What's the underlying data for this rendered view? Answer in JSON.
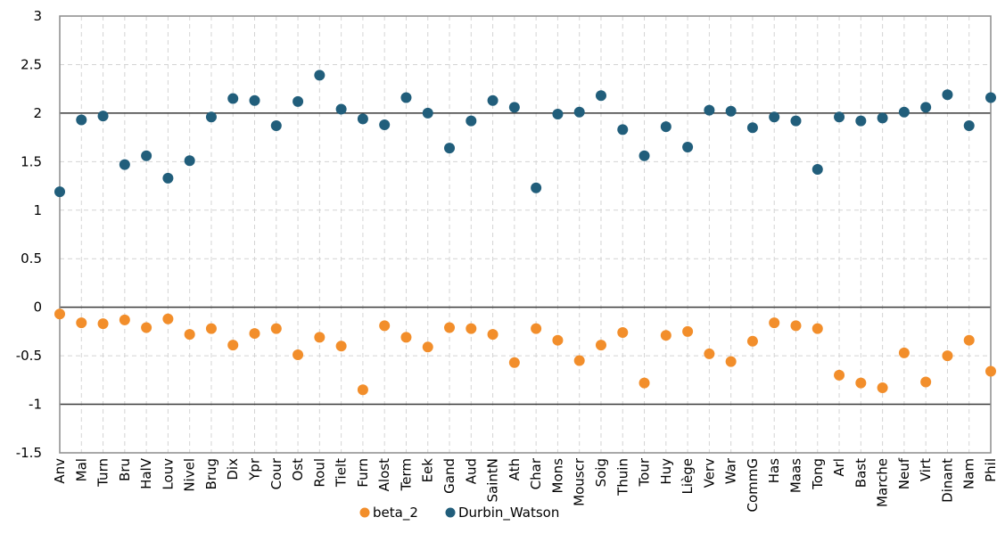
{
  "chart_data": {
    "type": "scatter",
    "ylim": [
      -1.5,
      3
    ],
    "yticks": [
      -1.5,
      -1,
      -0.5,
      0,
      0.5,
      1,
      1.5,
      2,
      2.5,
      3
    ],
    "ytick_labels": [
      "-1.5",
      "-1",
      "-0.5",
      "0",
      "0.5",
      "1",
      "1.5",
      "2",
      "2.5",
      "3"
    ],
    "reference_lines": [
      -1,
      0,
      2
    ],
    "grid": true,
    "legend_position": "bottom",
    "categories": [
      "Anv",
      "Mal",
      "Turn",
      "Bru",
      "HalV",
      "Louv",
      "Nivel",
      "Brug",
      "Dix",
      "Ypr",
      "Cour",
      "Ost",
      "Roul",
      "Tielt",
      "Furn",
      "Alost",
      "Term",
      "Eek",
      "Gand",
      "Aud",
      "SaintN",
      "Ath",
      "Char",
      "Mons",
      "Mouscr",
      "Soig",
      "Thuin",
      "Tour",
      "Huy",
      "Liège",
      "Verv",
      "War",
      "CommG",
      "Has",
      "Maas",
      "Tong",
      "Arl",
      "Bast",
      "Marche",
      "Neuf",
      "Virt",
      "Dinant",
      "Nam",
      "Phil"
    ],
    "series": [
      {
        "name": "beta_2",
        "color": "#F28E2B",
        "values": [
          -0.07,
          -0.16,
          -0.17,
          -0.13,
          -0.21,
          -0.12,
          -0.28,
          -0.22,
          -0.39,
          -0.27,
          -0.22,
          -0.49,
          -0.31,
          -0.4,
          -0.85,
          -0.19,
          -0.31,
          -0.41,
          -0.21,
          -0.22,
          -0.28,
          -0.57,
          -0.22,
          -0.34,
          -0.55,
          -0.39,
          -0.26,
          -0.78,
          -0.29,
          -0.25,
          -0.48,
          -0.56,
          -0.35,
          -0.16,
          -0.19,
          -0.22,
          -0.7,
          -0.78,
          -0.83,
          -0.47,
          -0.77,
          -0.5,
          -0.34,
          -0.66
        ]
      },
      {
        "name": "Durbin_Watson",
        "color": "#215E7B",
        "values": [
          1.19,
          1.93,
          1.97,
          1.47,
          1.56,
          1.33,
          1.51,
          1.96,
          2.15,
          2.13,
          1.87,
          2.12,
          2.39,
          2.04,
          1.94,
          1.88,
          2.16,
          2.0,
          1.64,
          1.92,
          2.13,
          2.06,
          1.23,
          1.99,
          2.01,
          2.18,
          1.83,
          1.56,
          1.86,
          1.65,
          2.03,
          2.02,
          1.85,
          1.96,
          1.92,
          1.42,
          1.96,
          1.92,
          1.95,
          2.01,
          2.06,
          2.19,
          1.87,
          2.16
        ]
      }
    ]
  }
}
